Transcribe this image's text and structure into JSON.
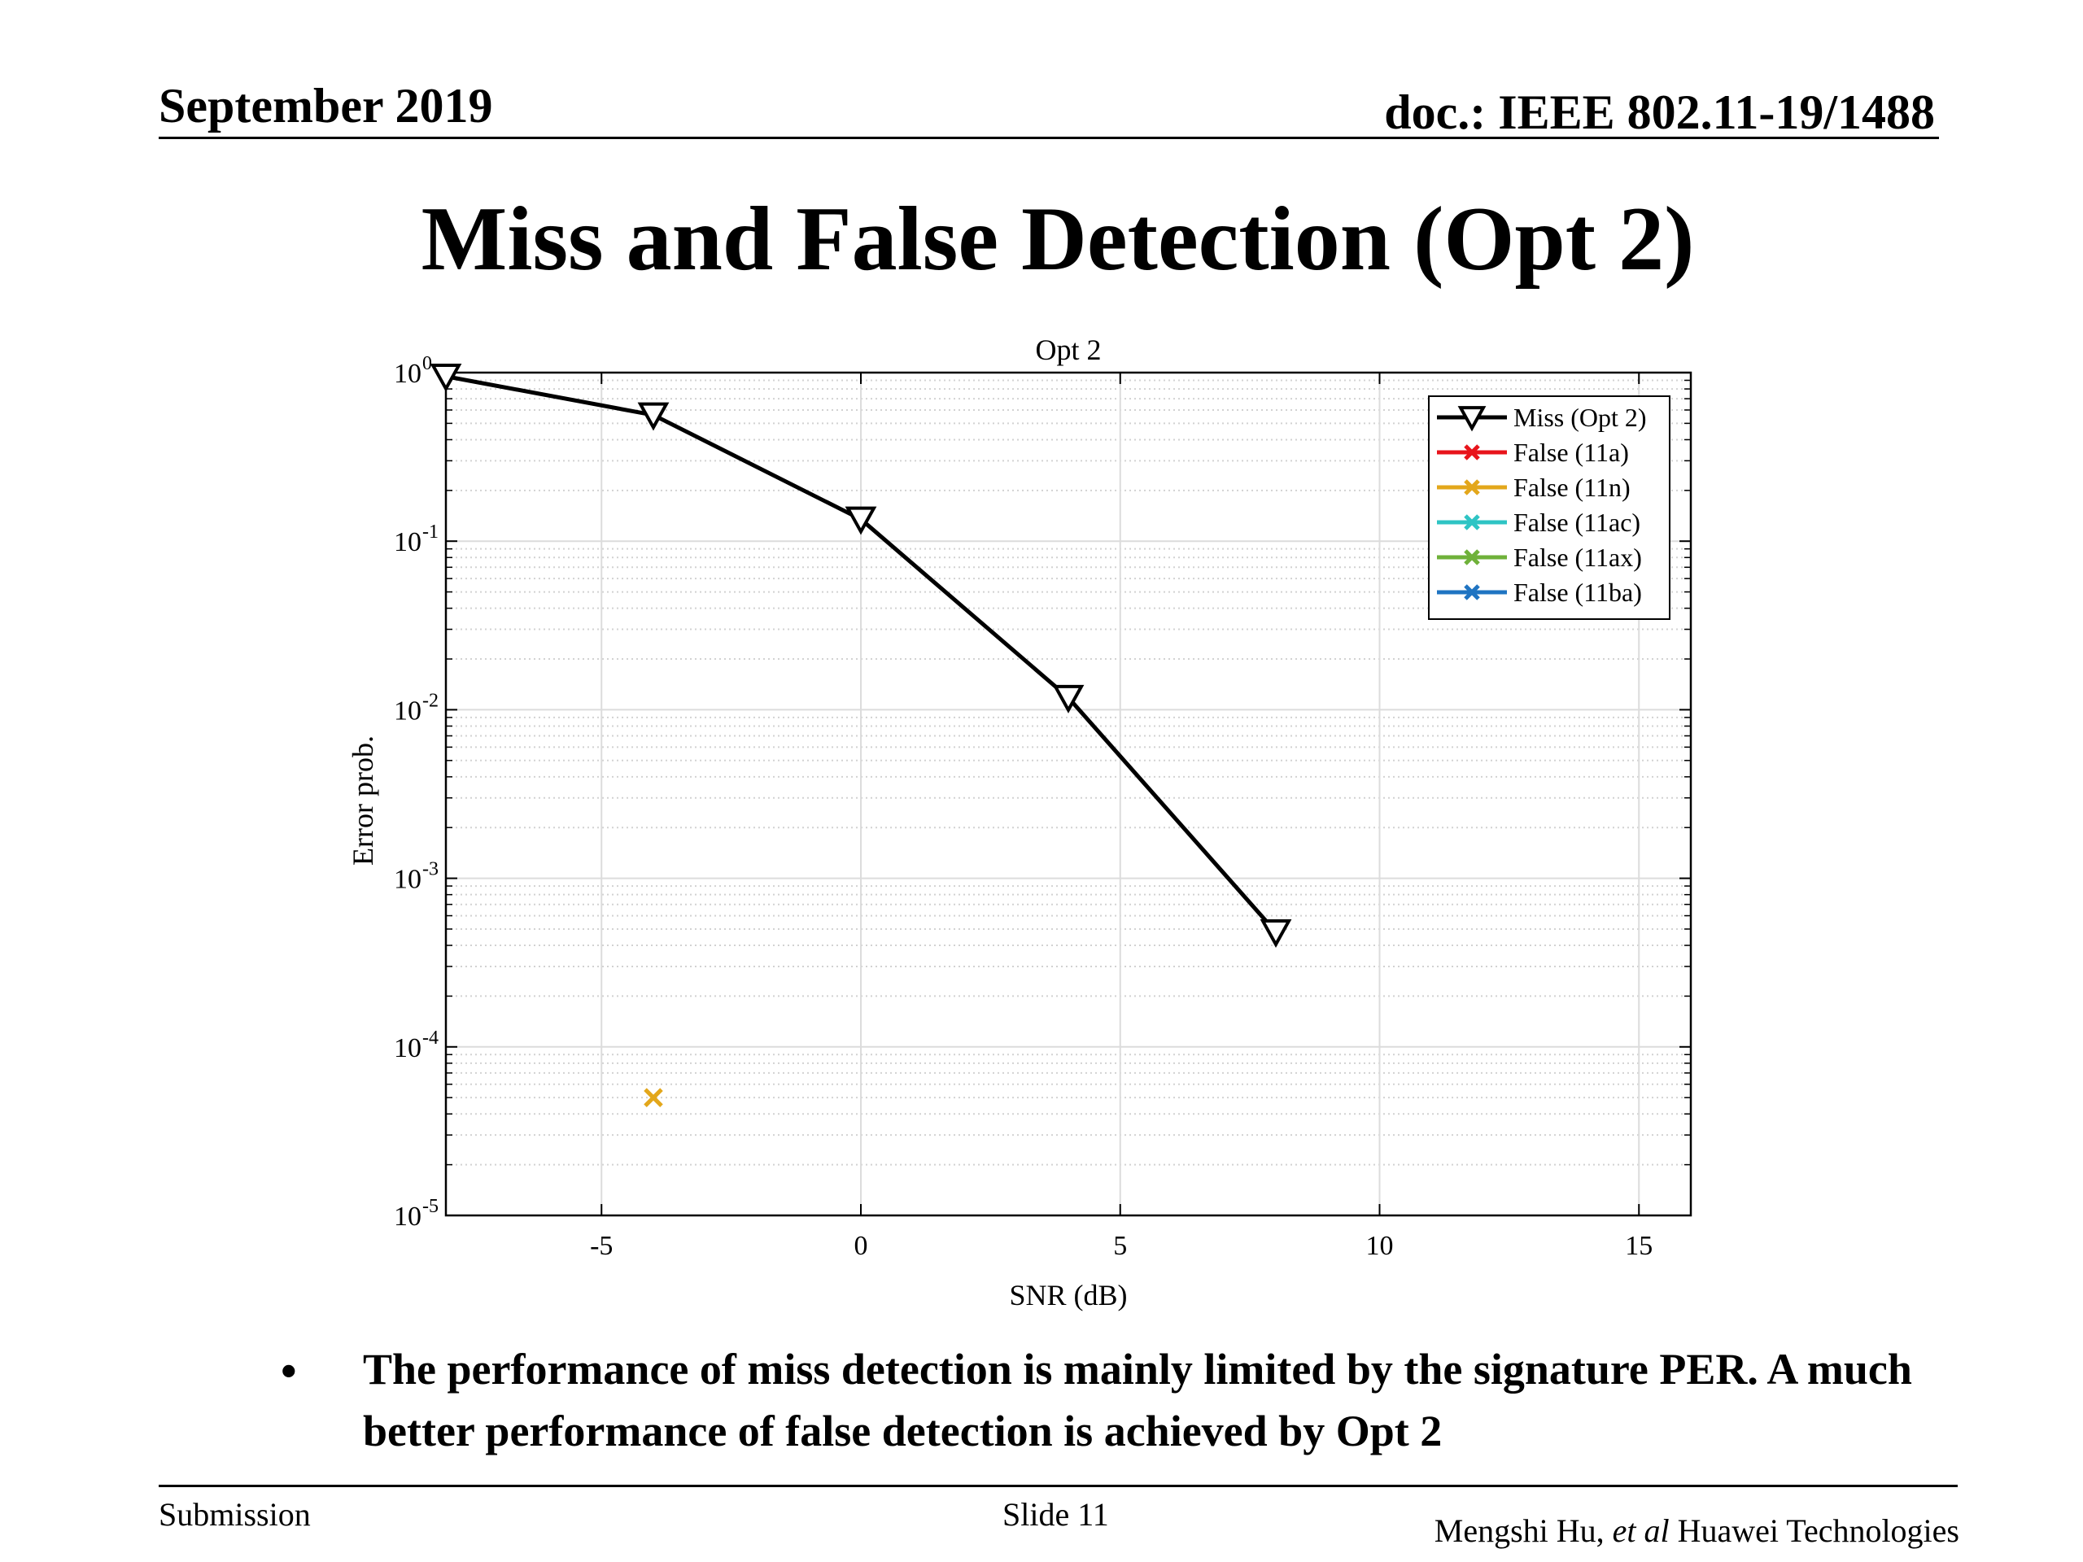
{
  "header": {
    "date": "September 2019",
    "doc": "doc.: IEEE 802.11-19/1488"
  },
  "slide": {
    "title": "Miss and False Detection (Opt 2)",
    "bullet_symbol": "•",
    "bullet_text": "The performance of miss detection is mainly limited by the signature PER. A much better performance of false detection is achieved by Opt 2"
  },
  "footer": {
    "left": "Submission",
    "center": "Slide 11",
    "author": "Mengshi Hu,",
    "etal": "et al",
    "org": "Huawei Technologies"
  },
  "chart_data": {
    "type": "line",
    "title": "Opt 2",
    "xlabel": "SNR (dB)",
    "ylabel": "Error prob.",
    "xlim": [
      -8,
      16
    ],
    "ylim": [
      1e-05,
      1
    ],
    "yscale": "log",
    "grid": true,
    "minor_grid": true,
    "legend_position": "top-right",
    "x_ticks": [
      -5,
      0,
      5,
      10,
      15
    ],
    "x_tick_labels": [
      "-5",
      "0",
      "5",
      "10",
      "15"
    ],
    "y_ticks": [
      1,
      0.1,
      0.01,
      0.001,
      0.0001,
      1e-05
    ],
    "y_tick_labels": [
      {
        "base": "10",
        "exp": "0"
      },
      {
        "base": "10",
        "exp": "-1"
      },
      {
        "base": "10",
        "exp": "-2"
      },
      {
        "base": "10",
        "exp": "-3"
      },
      {
        "base": "10",
        "exp": "-4"
      },
      {
        "base": "10",
        "exp": "-5"
      }
    ],
    "series": [
      {
        "name": "Miss (Opt 2)",
        "color": "#000000",
        "marker": "triangle-down",
        "x": [
          -8,
          -4,
          0,
          4,
          8
        ],
        "y": [
          0.95,
          0.56,
          0.135,
          0.0118,
          0.00048
        ]
      },
      {
        "name": "False (11a)",
        "color": "#e8141b",
        "marker": "x",
        "x": [],
        "y": []
      },
      {
        "name": "False (11n)",
        "color": "#e3a71b",
        "marker": "x",
        "x": [
          -4
        ],
        "y": [
          5e-05
        ]
      },
      {
        "name": "False (11ac)",
        "color": "#2ec4c4",
        "marker": "x",
        "x": [],
        "y": []
      },
      {
        "name": "False (11ax)",
        "color": "#6fb13a",
        "marker": "x",
        "x": [],
        "y": []
      },
      {
        "name": "False (11ba)",
        "color": "#1f74c2",
        "marker": "x",
        "x": [],
        "y": []
      }
    ]
  }
}
